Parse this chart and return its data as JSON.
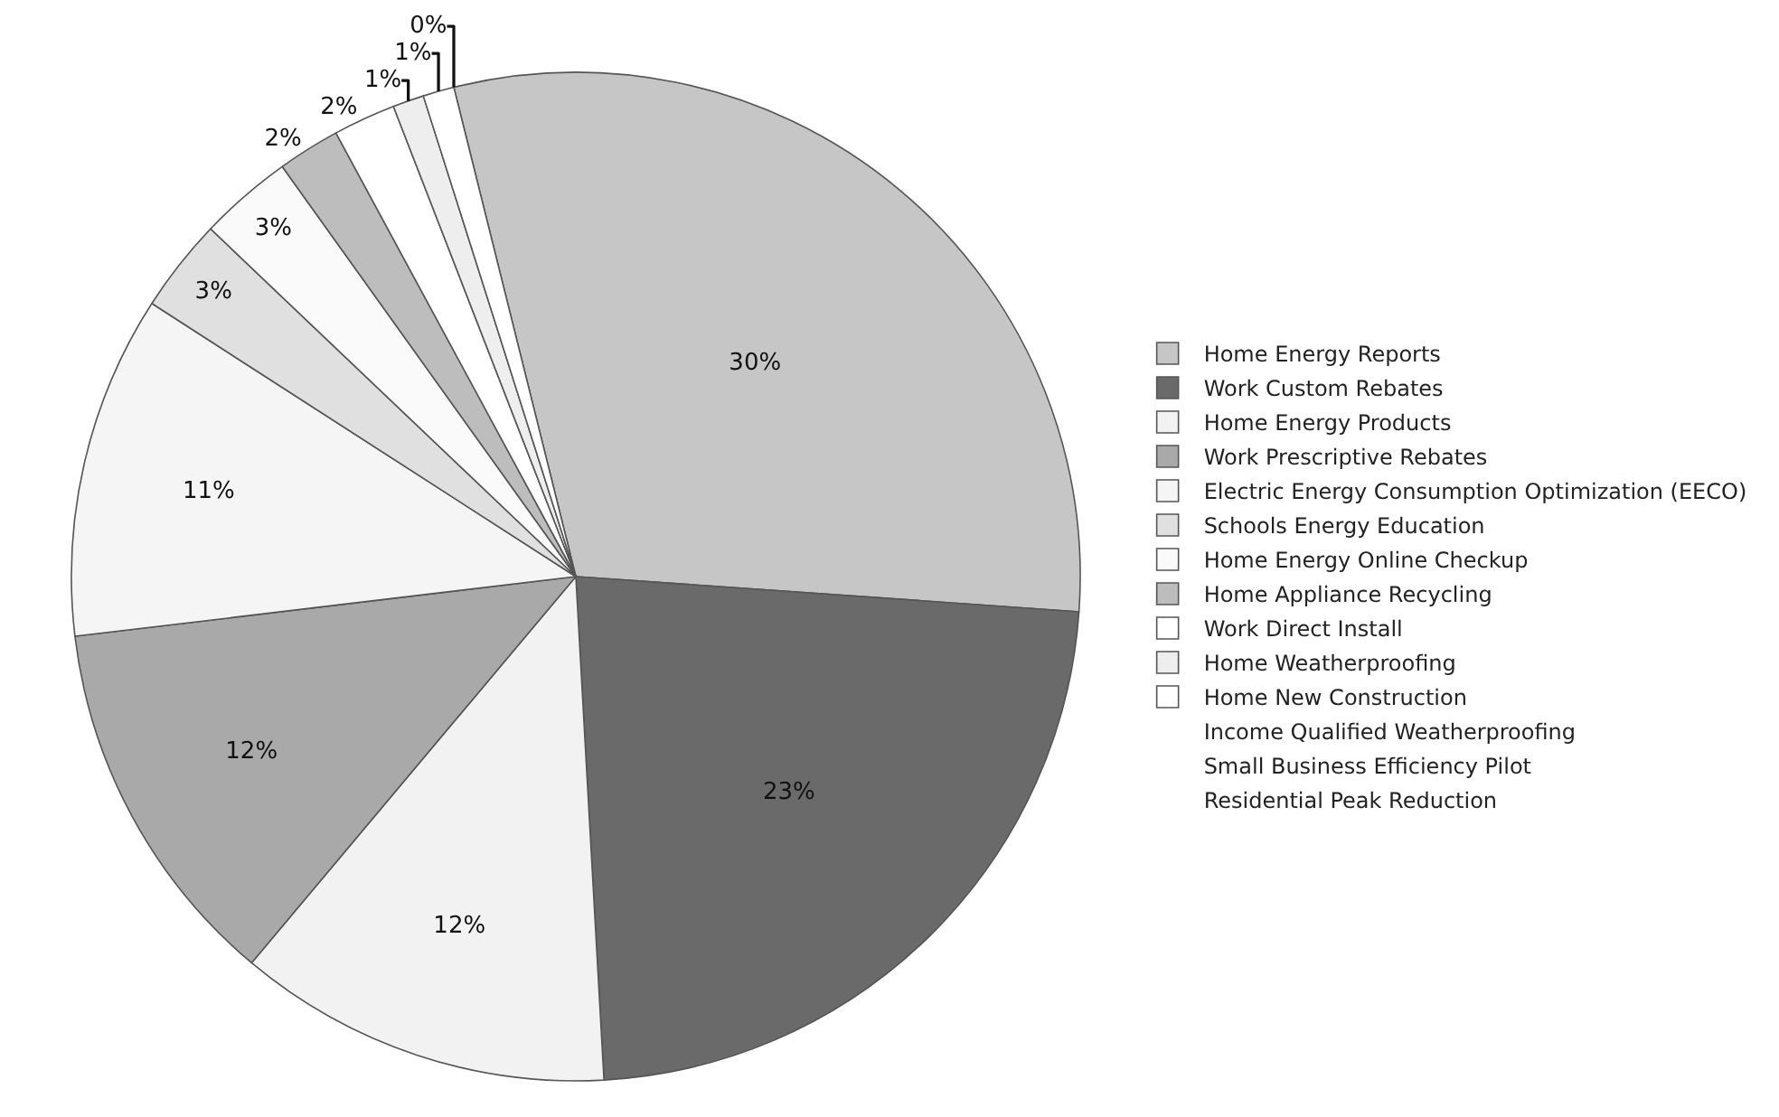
{
  "chart_data": {
    "type": "pie",
    "categories": [
      "Home Energy Reports",
      "Work Custom Rebates",
      "Home Energy Products",
      "Work Prescriptive Rebates",
      "Electric Energy Consumption Optimization (EECO)",
      "Schools Energy Education",
      "Home Energy Online Checkup",
      "Home Appliance Recycling",
      "Work Direct Install",
      "Home Weatherproofing",
      "Home New Construction",
      "Income Qualified Weatherproofing",
      "Small Business Efficiency Pilot",
      "Residential Peak Reduction"
    ],
    "values": [
      30,
      23,
      12,
      12,
      11,
      3,
      3,
      2,
      2,
      1,
      1,
      0,
      0,
      0
    ],
    "value_labels": [
      "30%",
      "23%",
      "12%",
      "12%",
      "11%",
      "3%",
      "3%",
      "2%",
      "2%",
      "1%",
      "1%",
      "0%",
      null,
      null
    ],
    "colors": [
      "#c6c6c6",
      "#6a6a6a",
      "#f2f2f2",
      "#a9a9a9",
      "#f5f5f5",
      "#e0e0e0",
      "#fafafa",
      "#bdbdbd",
      "#ffffff",
      "#eeeeee",
      "#ffffff",
      "#ffffff",
      "#ffffff",
      "#ffffff"
    ],
    "legend": "right"
  }
}
